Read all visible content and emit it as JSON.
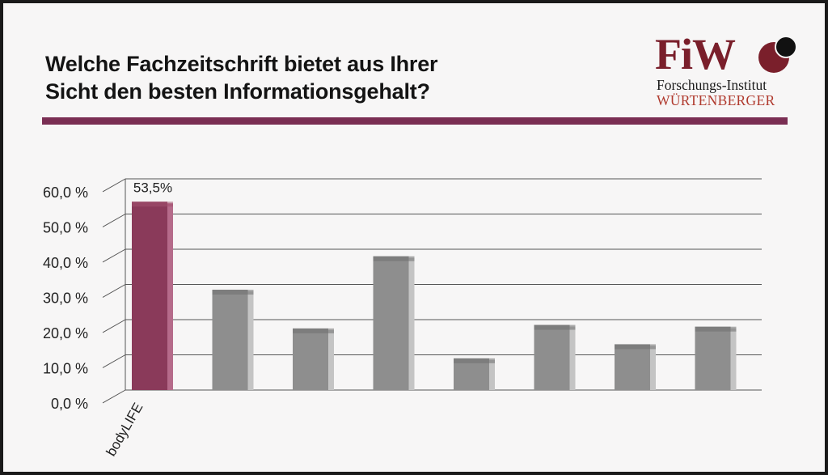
{
  "header": {
    "title_line1": "Welche Fachzeitschrift bietet aus Ihrer",
    "title_line2": "Sicht den besten Informationsgehalt?"
  },
  "logo": {
    "mark": "FiW",
    "line1": "Forschungs-Institut",
    "line2": "WÜRTENBERGER"
  },
  "colors": {
    "highlight": "#8a3a5a",
    "bar": "#8e8e8e",
    "rule": "#7a2e53",
    "grid": "#555555"
  },
  "chart_data": {
    "type": "bar",
    "categories": [
      "bodyLIFE",
      "",
      "",
      "",
      "",
      "",
      "",
      ""
    ],
    "values": [
      53.5,
      28.5,
      17.5,
      38,
      9,
      18.5,
      13,
      18
    ],
    "data_labels": [
      "53,5%",
      "",
      "",
      "",
      "",
      "",
      "",
      ""
    ],
    "highlight_index": 0,
    "yticks": [
      "0,0 %",
      "10,0 %",
      "20,0 %",
      "30,0 %",
      "40,0 %",
      "50,0 %",
      "60,0 %"
    ],
    "ylim": [
      0,
      60
    ],
    "grid": true,
    "title": "",
    "xlabel": "",
    "ylabel": ""
  }
}
